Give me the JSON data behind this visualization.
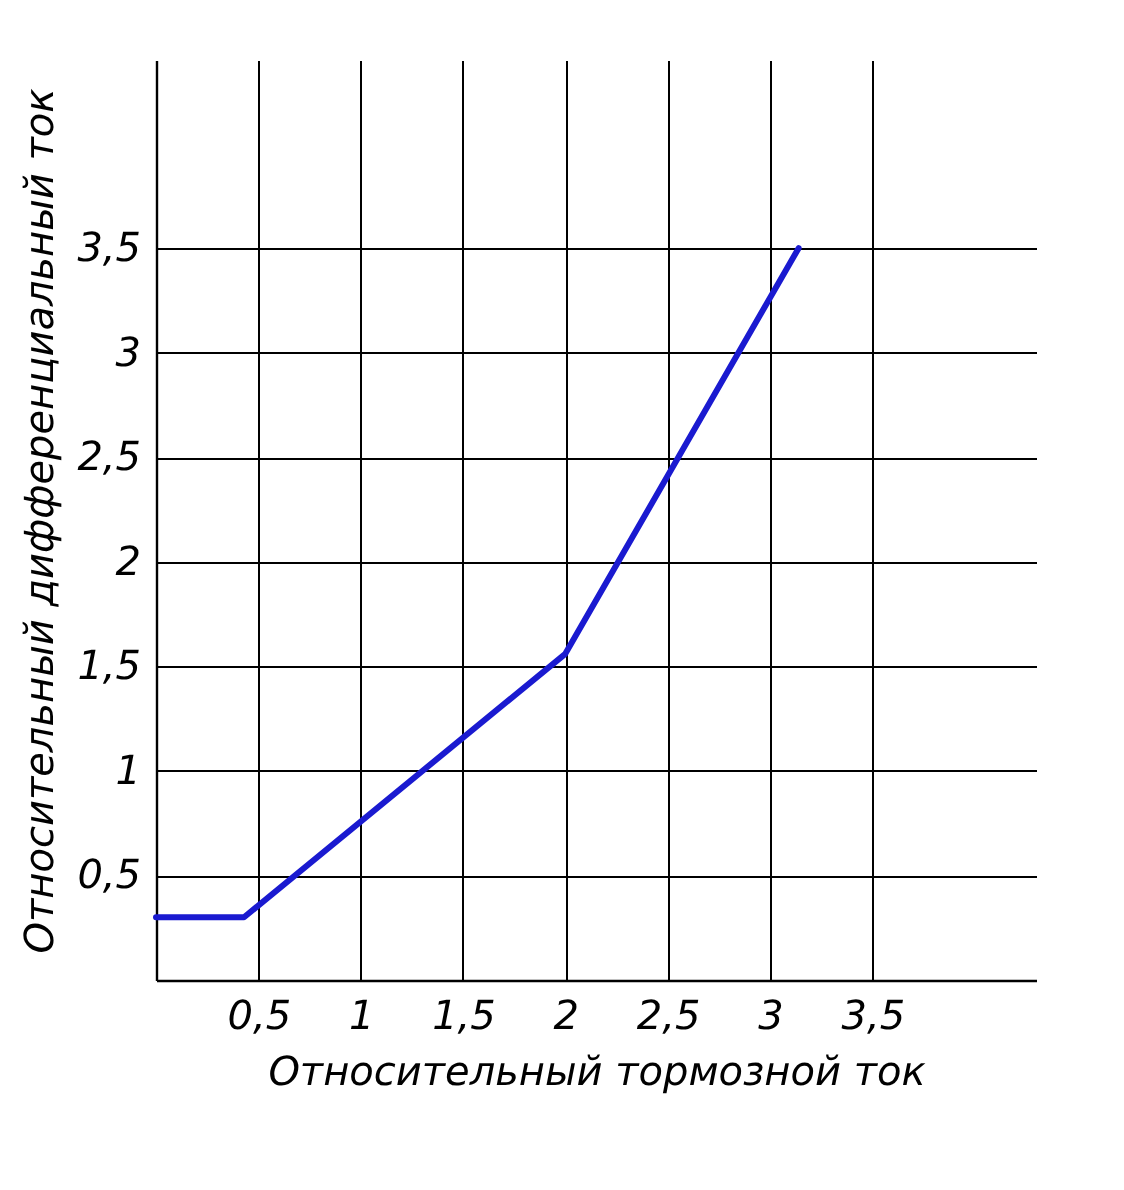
{
  "chart_data": {
    "type": "line",
    "xlabel": "Относительный тормозной ток",
    "ylabel": "Относительный дифференциальный ток",
    "x": [
      0,
      0.43,
      2,
      3.14
    ],
    "series": [
      {
        "color": "#1a1ad0",
        "values": [
          0.3,
          0.3,
          1.56,
          3.5
        ]
      }
    ],
    "xlim": [
      0,
      4.3
    ],
    "ylim": [
      0,
      4.4
    ],
    "xticks": [
      {
        "value": 0.5,
        "label": "0,5"
      },
      1,
      {
        "value": 1.5,
        "label": "1,5"
      },
      2,
      {
        "value": 2.5,
        "label": "2,5"
      },
      3,
      {
        "value": 3.5,
        "label": "3,5"
      }
    ],
    "yticks": [
      {
        "value": 0.5,
        "label": "0,5"
      },
      1,
      {
        "value": 1.5,
        "label": "1,5"
      },
      2,
      {
        "value": 2.5,
        "label": "2,5"
      },
      3,
      {
        "value": 3.5,
        "label": "3,5"
      }
    ],
    "grid": true,
    "marker": "none",
    "line_style": "solid"
  }
}
